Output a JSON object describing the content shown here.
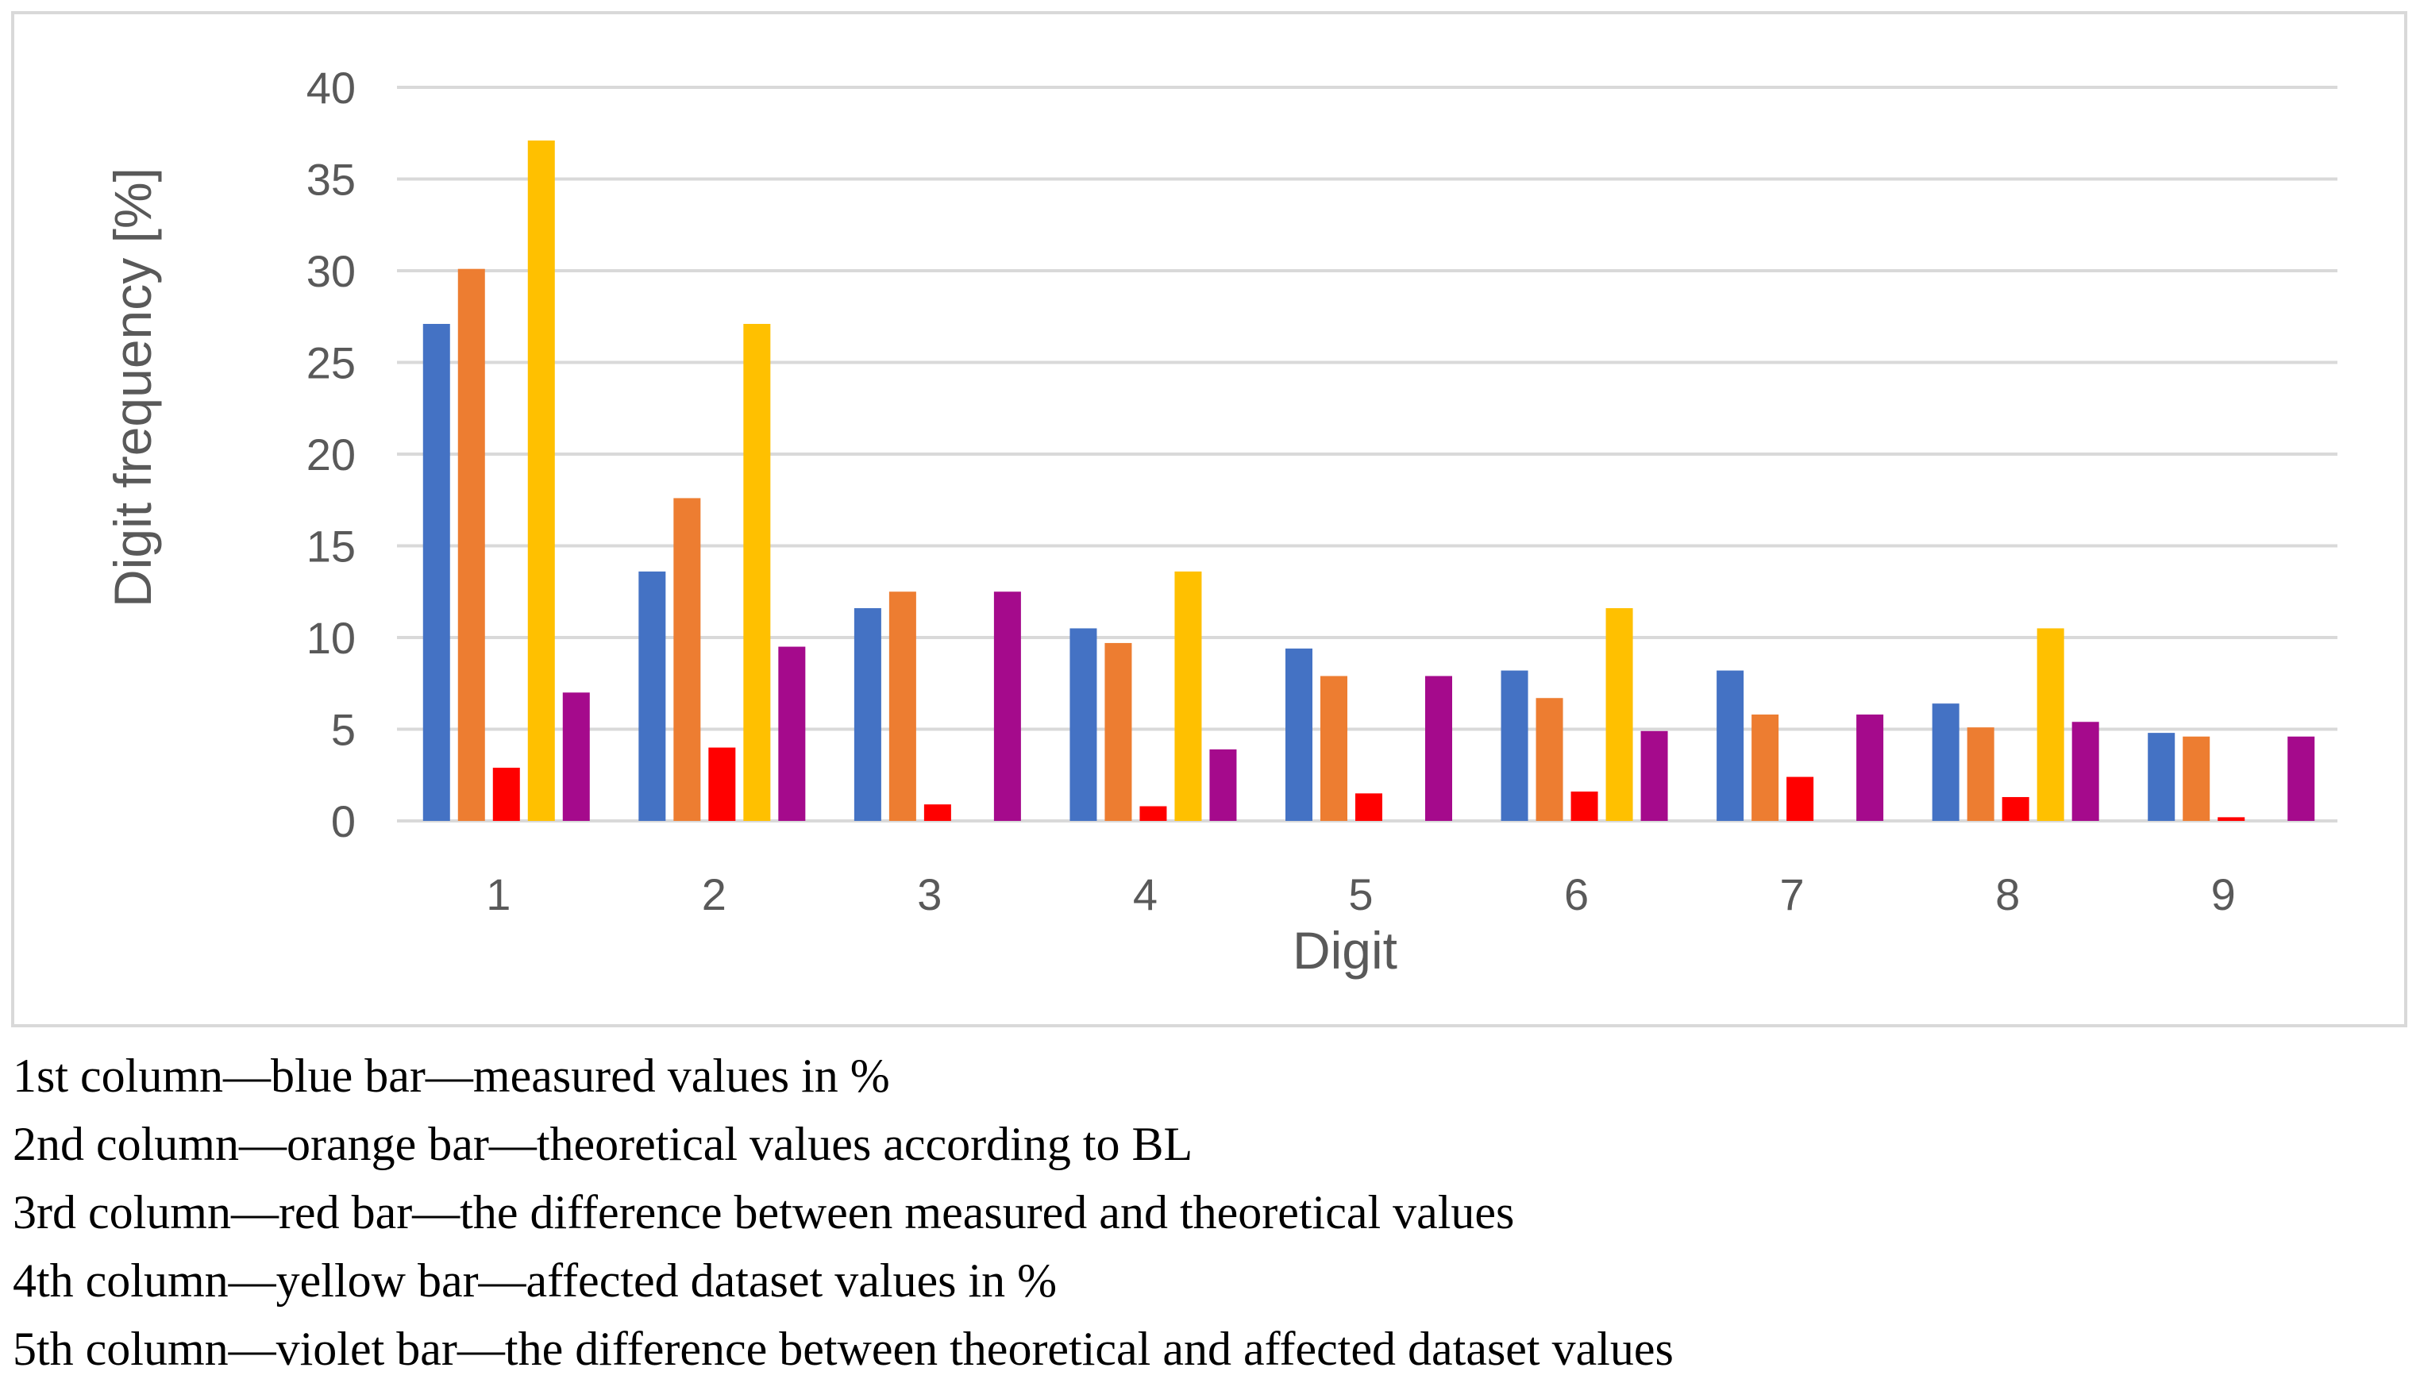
{
  "chart_data": {
    "type": "bar",
    "title": "",
    "xlabel": "Digit",
    "ylabel": "Digit frequency [%]",
    "ylim": [
      0,
      40
    ],
    "yticks": [
      0,
      5,
      10,
      15,
      20,
      25,
      30,
      35,
      40
    ],
    "grid": true,
    "categories": [
      "1",
      "2",
      "3",
      "4",
      "5",
      "6",
      "7",
      "8",
      "9"
    ],
    "series": [
      {
        "name": "measured values in %",
        "color": "#4472c4",
        "values": [
          27.1,
          13.6,
          11.6,
          10.5,
          9.4,
          8.2,
          8.2,
          6.4,
          4.8
        ]
      },
      {
        "name": "theoretical values according to BL",
        "color": "#ed7d31",
        "values": [
          30.1,
          17.6,
          12.5,
          9.7,
          7.9,
          6.7,
          5.8,
          5.1,
          4.6
        ]
      },
      {
        "name": "difference between measured and theoretical values",
        "color": "#ff0000",
        "values": [
          2.9,
          4.0,
          0.9,
          0.8,
          1.5,
          1.6,
          2.4,
          1.3,
          0.2
        ]
      },
      {
        "name": "affected dataset values in %",
        "color": "#ffc000",
        "values": [
          37.1,
          27.1,
          0,
          13.6,
          0,
          11.6,
          0,
          10.5,
          0
        ]
      },
      {
        "name": "difference between theoretical and affected dataset values",
        "color": "#a50a8c",
        "values": [
          7.0,
          9.5,
          12.5,
          3.9,
          7.9,
          4.9,
          5.8,
          5.4,
          4.6
        ]
      }
    ]
  },
  "notes": [
    "1st column—blue bar—measured values in %",
    "2nd column—orange bar—theoretical values according to BL",
    "3rd column—red bar—the difference between measured and theoretical values",
    "4th column—yellow bar—affected dataset values in %",
    "5th column—violet bar—the difference between theoretical and affected dataset values"
  ],
  "colors": {
    "grid": "#d9d9d9",
    "text": "#595959"
  }
}
